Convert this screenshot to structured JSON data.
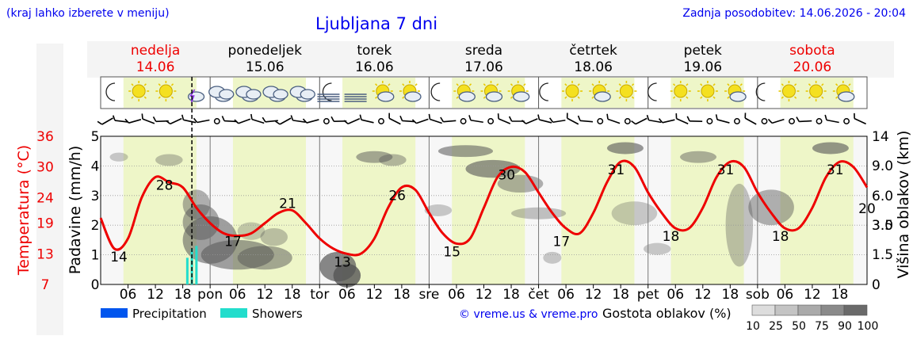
{
  "header": {
    "left_note": "(kraj lahko izberete v meniju)",
    "title": "Ljubljana 7 dni",
    "updated": "Zadnja posodobitev: 14.06.2026 - 20:04"
  },
  "colors": {
    "link_blue": "#0000ee",
    "temp_red": "#ee0000",
    "daylight": "#eef6c8",
    "night": "#f7f7f7",
    "precip": "#0055ee",
    "showers": "#22ddcc"
  },
  "days": [
    {
      "name": "nedelja",
      "date": "14.06",
      "weekend": true
    },
    {
      "name": "ponedeljek",
      "date": "15.06",
      "weekend": false
    },
    {
      "name": "torek",
      "date": "16.06",
      "weekend": false
    },
    {
      "name": "sreda",
      "date": "17.06",
      "weekend": false
    },
    {
      "name": "četrtek",
      "date": "18.06",
      "weekend": false
    },
    {
      "name": "petek",
      "date": "19.06",
      "weekend": false
    },
    {
      "name": "sobota",
      "date": "20.06",
      "weekend": true
    }
  ],
  "weather_icons": [
    "moon-icon",
    "sun-icon",
    "sun-icon",
    "storm-icon",
    "cloud-icon",
    "cloud-icon",
    "cloud-icon",
    "cloud-icon",
    "moon-fog-icon",
    "fog-icon",
    "sun-cloud-icon",
    "sun-cloud-icon",
    "moon-icon",
    "sun-cloud-icon",
    "sun-cloud-icon",
    "sun-cloud-icon",
    "moon-icon",
    "sun-icon",
    "sun-cloud-icon",
    "sun-icon",
    "moon-icon",
    "sun-icon",
    "sun-icon",
    "sun-cloud-icon",
    "moon-icon",
    "sun-icon",
    "sun-icon",
    "sun-cloud-icon"
  ],
  "chart_data": {
    "type": "line",
    "title": "Ljubljana 7 dni",
    "x_axis": {
      "unit": "hours since 14.06 00:00",
      "range": [
        0,
        168
      ],
      "tick_labels": [
        "06",
        "12",
        "18",
        "pon",
        "06",
        "12",
        "18",
        "tor",
        "06",
        "12",
        "18",
        "sre",
        "06",
        "12",
        "18",
        "čet",
        "06",
        "12",
        "18",
        "pet",
        "06",
        "12",
        "18",
        "sob",
        "06",
        "12",
        "18"
      ]
    },
    "y_left": {
      "label": "Padavine (mm/h)",
      "range": [
        0,
        5
      ],
      "ticks": [
        "0",
        "1",
        "2",
        "3",
        "4",
        "5"
      ]
    },
    "y_temp": {
      "label": "Temperatura (°C)",
      "ticks": [
        "7",
        "13",
        "19",
        "24",
        "30",
        "36"
      ]
    },
    "y_right": {
      "label": "Višina oblakov (km)",
      "ticks": [
        "0",
        "1.5",
        "3.0",
        "3.5",
        "6.0",
        "9.0",
        "14"
      ]
    },
    "temperature": {
      "x": [
        0,
        3,
        6,
        9,
        12,
        15,
        18,
        21,
        24,
        27,
        30,
        33,
        36,
        39,
        42,
        45,
        48,
        51,
        54,
        57,
        60,
        63,
        66,
        69,
        72,
        75,
        78,
        81,
        84,
        87,
        90,
        93,
        96,
        99,
        102,
        105,
        108,
        111,
        114,
        117,
        120,
        123,
        126,
        129,
        132,
        135,
        138,
        141,
        144,
        147,
        150,
        153,
        156,
        159,
        162,
        165,
        168
      ],
      "y": [
        20,
        14,
        16,
        24,
        28,
        27,
        26,
        22,
        19,
        17,
        16.5,
        17,
        19,
        21,
        21.5,
        19,
        16,
        14,
        13,
        13,
        16,
        22,
        26,
        25.5,
        21,
        17,
        15,
        16,
        22,
        28,
        30,
        29,
        25,
        21,
        18,
        17,
        21,
        27,
        31,
        30,
        25,
        21,
        18,
        18,
        22,
        28,
        31,
        30,
        25,
        21,
        18,
        18,
        22,
        28,
        31,
        30,
        26
      ],
      "labels": [
        {
          "x": 4,
          "text": "14"
        },
        {
          "x": 14,
          "text": "28"
        },
        {
          "x": 29,
          "text": "17"
        },
        {
          "x": 41,
          "text": "21"
        },
        {
          "x": 53,
          "text": "13"
        },
        {
          "x": 65,
          "text": "26"
        },
        {
          "x": 77,
          "text": "15"
        },
        {
          "x": 89,
          "text": "30"
        },
        {
          "x": 101,
          "text": "17"
        },
        {
          "x": 113,
          "text": "31"
        },
        {
          "x": 125,
          "text": "18"
        },
        {
          "x": 137,
          "text": "31"
        },
        {
          "x": 149,
          "text": "18"
        },
        {
          "x": 161,
          "text": "31"
        },
        {
          "x": 168,
          "text": "20"
        }
      ]
    },
    "precipitation": {
      "showers_x": [
        19,
        20,
        21
      ],
      "showers_mm": [
        0.9,
        1.2,
        1.3
      ]
    },
    "current_time_x": 20
  },
  "legend": {
    "precipitation": "Precipitation",
    "showers": "Showers",
    "credit": "© vreme.us & vreme.pro",
    "cloud_density_label": "Gostota oblakov (%)",
    "cloud_density_ticks": [
      "10",
      "25",
      "50",
      "75",
      "90",
      "100"
    ]
  }
}
